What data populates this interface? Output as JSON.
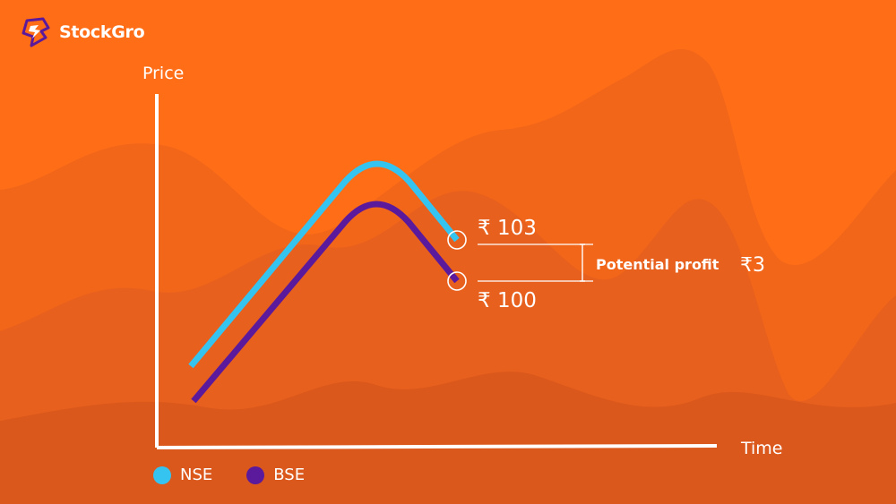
{
  "brand": {
    "name": "StockGro",
    "logo_icon": "stockgro-logo-icon"
  },
  "colors": {
    "background": "#ff6d17",
    "wave_light": "#f2661a",
    "wave_mid": "#e8601d",
    "wave_dark": "#db581c",
    "axis": "#ffffff",
    "nse": "#35c3f0",
    "bse": "#5b1a9c",
    "text": "#ffffff"
  },
  "chart_data": {
    "type": "line",
    "xlabel": "Time",
    "ylabel": "Price",
    "grid": false,
    "legend_placement": "bottom-left",
    "series": [
      {
        "name": "NSE",
        "shape": "rise-peak-fall",
        "end_value": 103,
        "end_label": "₹ 103"
      },
      {
        "name": "BSE",
        "shape": "rise-peak-fall",
        "end_value": 100,
        "end_label": "₹ 100"
      }
    ],
    "annotations": [
      {
        "text": "Potential profit",
        "value_label": "₹3",
        "value": 3
      }
    ]
  }
}
